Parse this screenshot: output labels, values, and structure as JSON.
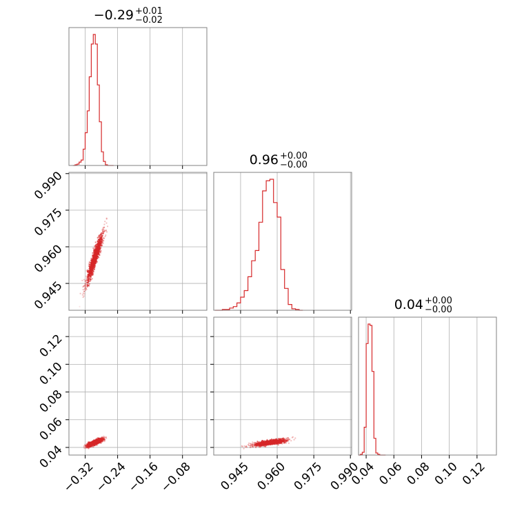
{
  "chart_data": {
    "type": "corner",
    "color": "#d62728",
    "grid": true,
    "parameters": [
      {
        "title": {
          "value": "−0.29",
          "plus": "+0.01",
          "minus": "−0.02"
        },
        "range": [
          -0.36,
          -0.02
        ],
        "ticks": [
          -0.32,
          -0.24,
          -0.16,
          -0.08
        ],
        "tick_labels": [
          "−0.32",
          "−0.24",
          "−0.16",
          "−0.08"
        ]
      },
      {
        "title": {
          "value": "0.96",
          "plus": "+0.00",
          "minus": "−0.00"
        },
        "range": [
          0.934,
          0.9905
        ],
        "ticks": [
          0.945,
          0.96,
          0.975,
          0.99
        ],
        "tick_labels": [
          "0.945",
          "0.960",
          "0.975",
          "0.990"
        ]
      },
      {
        "title": {
          "value": "0.04",
          "plus": "+0.00",
          "minus": "−0.00"
        },
        "range": [
          0.0345,
          0.134
        ],
        "ticks": [
          0.04,
          0.06,
          0.08,
          0.1,
          0.12
        ],
        "tick_labels": [
          "0.04",
          "0.06",
          "0.08",
          "0.10",
          "0.12"
        ]
      }
    ],
    "histograms": [
      {
        "param": 0,
        "edges": [
          -0.35,
          -0.345,
          -0.34,
          -0.335,
          -0.33,
          -0.325,
          -0.32,
          -0.315,
          -0.31,
          -0.305,
          -0.3,
          -0.295,
          -0.29,
          -0.285,
          -0.28,
          -0.275,
          -0.27,
          -0.265,
          -0.26,
          -0.255,
          -0.25
        ],
        "counts": [
          0,
          1,
          2,
          5,
          8,
          24,
          48,
          80,
          130,
          178,
          192,
          178,
          118,
          64,
          20,
          6,
          1,
          0,
          0,
          0
        ]
      },
      {
        "param": 1,
        "edges": [
          0.9345,
          0.936,
          0.9375,
          0.939,
          0.9405,
          0.942,
          0.9435,
          0.945,
          0.9465,
          0.948,
          0.9495,
          0.951,
          0.9525,
          0.954,
          0.9555,
          0.957,
          0.9585,
          0.96,
          0.9615,
          0.963,
          0.9645,
          0.966,
          0.9675,
          0.969,
          0.9705
        ],
        "counts": [
          0,
          0,
          1,
          1,
          3,
          5,
          10,
          18,
          27,
          46,
          68,
          82,
          121,
          164,
          178,
          180,
          148,
          128,
          56,
          30,
          8,
          2,
          1,
          0
        ]
      },
      {
        "param": 2,
        "edges": [
          0.0345,
          0.0358,
          0.0372,
          0.0386,
          0.04,
          0.0414,
          0.0428,
          0.0442,
          0.0456,
          0.047,
          0.0484,
          0.0498,
          0.0512,
          0.0526,
          0.054
        ],
        "counts": [
          0,
          1,
          4,
          40,
          160,
          188,
          186,
          120,
          24,
          3,
          1,
          0,
          0,
          0
        ]
      }
    ],
    "scatter_2d": [
      {
        "x_param": 0,
        "y_param": 1,
        "center": [
          -0.296,
          0.9555
        ],
        "slope": 0.48,
        "x_extent": [
          -0.35,
          -0.24
        ],
        "width": 0.0032
      },
      {
        "x_param": 0,
        "y_param": 2,
        "center": [
          -0.296,
          0.0435
        ],
        "slope": 0.12,
        "x_extent": [
          -0.35,
          -0.24
        ],
        "width": 0.0014
      },
      {
        "x_param": 1,
        "y_param": 2,
        "center": [
          0.957,
          0.0435
        ],
        "slope": 0.25,
        "x_extent": [
          0.935,
          0.9705
        ],
        "width": 0.0014
      }
    ]
  }
}
